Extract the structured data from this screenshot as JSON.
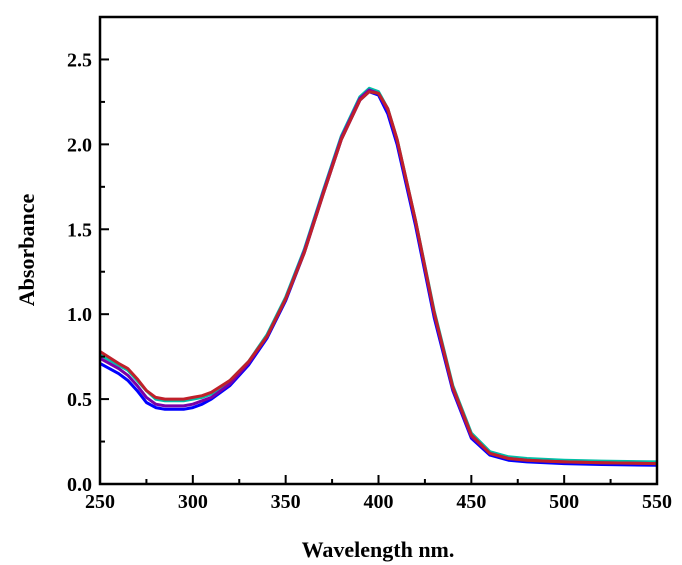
{
  "chart_data": {
    "type": "line",
    "title": "",
    "xlabel": "Wavelength nm.",
    "ylabel": "Absorbance",
    "xlim": [
      250,
      550
    ],
    "ylim": [
      0.0,
      2.75
    ],
    "x_ticks": [
      250,
      300,
      350,
      400,
      450,
      500,
      550
    ],
    "x_tick_labels": [
      "250",
      "300",
      "350",
      "400",
      "450",
      "500",
      "550"
    ],
    "y_ticks": [
      0.0,
      0.5,
      1.0,
      1.5,
      2.0,
      2.5
    ],
    "y_tick_labels": [
      "0.0",
      "0.5",
      "1.0",
      "1.5",
      "2.0",
      "2.5"
    ],
    "grid": false,
    "legend": "none",
    "series": [
      {
        "color": "#00bfa5",
        "x": [
          250,
          260,
          265,
          270,
          275,
          280,
          285,
          290,
          295,
          300,
          305,
          310,
          320,
          330,
          340,
          350,
          360,
          370,
          380,
          390,
          395,
          400,
          405,
          410,
          420,
          430,
          440,
          450,
          460,
          470,
          480,
          490,
          500,
          520,
          550
        ],
        "y": [
          0.76,
          0.7,
          0.67,
          0.61,
          0.55,
          0.5,
          0.49,
          0.49,
          0.49,
          0.5,
          0.51,
          0.53,
          0.61,
          0.72,
          0.88,
          1.1,
          1.38,
          1.72,
          2.05,
          2.28,
          2.33,
          2.31,
          2.21,
          2.03,
          1.55,
          1.02,
          0.58,
          0.3,
          0.19,
          0.16,
          0.15,
          0.145,
          0.14,
          0.135,
          0.13
        ]
      },
      {
        "color": "#0000ff",
        "x": [
          250,
          260,
          265,
          270,
          275,
          280,
          285,
          290,
          295,
          300,
          305,
          310,
          320,
          330,
          340,
          350,
          360,
          370,
          380,
          390,
          395,
          400,
          405,
          410,
          420,
          430,
          440,
          450,
          460,
          470,
          480,
          490,
          500,
          520,
          550
        ],
        "y": [
          0.71,
          0.65,
          0.61,
          0.55,
          0.48,
          0.45,
          0.44,
          0.44,
          0.44,
          0.45,
          0.47,
          0.5,
          0.58,
          0.7,
          0.86,
          1.08,
          1.36,
          1.7,
          2.03,
          2.26,
          2.31,
          2.29,
          2.18,
          2.0,
          1.52,
          0.98,
          0.55,
          0.27,
          0.17,
          0.14,
          0.13,
          0.125,
          0.12,
          0.115,
          0.11
        ]
      },
      {
        "color": "#7a00a8",
        "x": [
          250,
          260,
          265,
          270,
          275,
          280,
          285,
          290,
          295,
          300,
          305,
          310,
          320,
          330,
          340,
          350,
          360,
          370,
          380,
          390,
          395,
          400,
          405,
          410,
          420,
          430,
          440,
          450,
          460,
          470,
          480,
          490,
          500,
          520,
          550
        ],
        "y": [
          0.74,
          0.68,
          0.64,
          0.58,
          0.51,
          0.47,
          0.46,
          0.46,
          0.46,
          0.47,
          0.49,
          0.51,
          0.59,
          0.71,
          0.87,
          1.09,
          1.37,
          1.71,
          2.04,
          2.27,
          2.32,
          2.3,
          2.2,
          2.02,
          1.54,
          1.0,
          0.56,
          0.28,
          0.18,
          0.15,
          0.14,
          0.135,
          0.13,
          0.125,
          0.12
        ]
      },
      {
        "color": "#c0202a",
        "x": [
          250,
          260,
          265,
          270,
          275,
          280,
          285,
          290,
          295,
          300,
          305,
          310,
          320,
          330,
          340,
          350,
          360,
          370,
          380,
          390,
          395,
          400,
          405,
          410,
          420,
          430,
          440,
          450,
          460,
          470,
          480,
          490,
          500,
          520,
          550
        ],
        "y": [
          0.78,
          0.71,
          0.68,
          0.62,
          0.55,
          0.51,
          0.5,
          0.5,
          0.5,
          0.51,
          0.52,
          0.54,
          0.61,
          0.72,
          0.87,
          1.09,
          1.36,
          1.7,
          2.03,
          2.26,
          2.31,
          2.3,
          2.21,
          2.03,
          1.55,
          1.01,
          0.57,
          0.29,
          0.18,
          0.15,
          0.14,
          0.135,
          0.13,
          0.125,
          0.12
        ]
      }
    ]
  }
}
